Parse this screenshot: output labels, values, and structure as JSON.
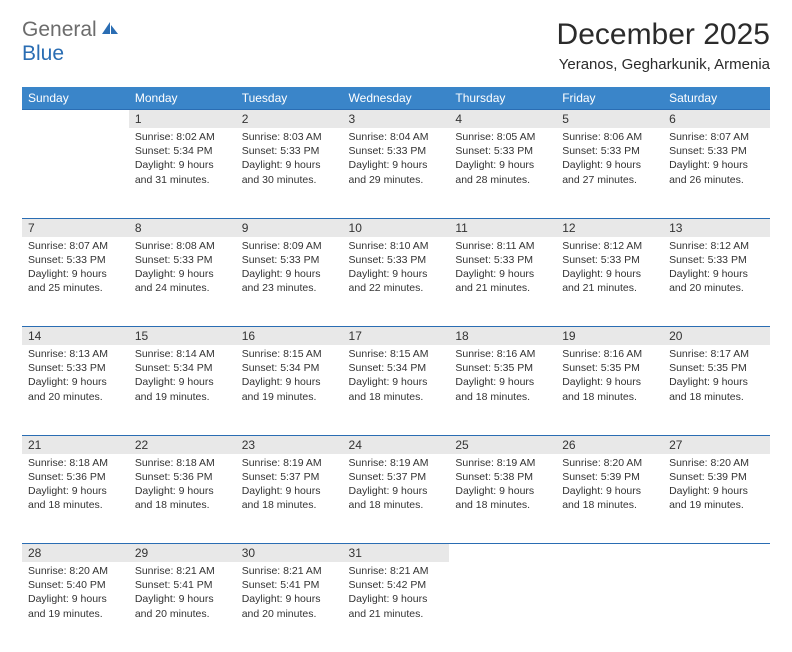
{
  "logo": {
    "word1": "General",
    "word2": "Blue"
  },
  "title": "December 2025",
  "location": "Yeranos, Gegharkunik, Armenia",
  "colors": {
    "header_bg": "#3a85c9",
    "header_text": "#ffffff",
    "daynum_bg": "#e8e8e8",
    "border": "#2a6db3",
    "logo_gray": "#6c6c6c",
    "logo_blue": "#2a6db3"
  },
  "weekdays": [
    "Sunday",
    "Monday",
    "Tuesday",
    "Wednesday",
    "Thursday",
    "Friday",
    "Saturday"
  ],
  "weeks": [
    [
      null,
      {
        "n": "1",
        "sr": "Sunrise: 8:02 AM",
        "ss": "Sunset: 5:34 PM",
        "dl": "Daylight: 9 hours and 31 minutes."
      },
      {
        "n": "2",
        "sr": "Sunrise: 8:03 AM",
        "ss": "Sunset: 5:33 PM",
        "dl": "Daylight: 9 hours and 30 minutes."
      },
      {
        "n": "3",
        "sr": "Sunrise: 8:04 AM",
        "ss": "Sunset: 5:33 PM",
        "dl": "Daylight: 9 hours and 29 minutes."
      },
      {
        "n": "4",
        "sr": "Sunrise: 8:05 AM",
        "ss": "Sunset: 5:33 PM",
        "dl": "Daylight: 9 hours and 28 minutes."
      },
      {
        "n": "5",
        "sr": "Sunrise: 8:06 AM",
        "ss": "Sunset: 5:33 PM",
        "dl": "Daylight: 9 hours and 27 minutes."
      },
      {
        "n": "6",
        "sr": "Sunrise: 8:07 AM",
        "ss": "Sunset: 5:33 PM",
        "dl": "Daylight: 9 hours and 26 minutes."
      }
    ],
    [
      {
        "n": "7",
        "sr": "Sunrise: 8:07 AM",
        "ss": "Sunset: 5:33 PM",
        "dl": "Daylight: 9 hours and 25 minutes."
      },
      {
        "n": "8",
        "sr": "Sunrise: 8:08 AM",
        "ss": "Sunset: 5:33 PM",
        "dl": "Daylight: 9 hours and 24 minutes."
      },
      {
        "n": "9",
        "sr": "Sunrise: 8:09 AM",
        "ss": "Sunset: 5:33 PM",
        "dl": "Daylight: 9 hours and 23 minutes."
      },
      {
        "n": "10",
        "sr": "Sunrise: 8:10 AM",
        "ss": "Sunset: 5:33 PM",
        "dl": "Daylight: 9 hours and 22 minutes."
      },
      {
        "n": "11",
        "sr": "Sunrise: 8:11 AM",
        "ss": "Sunset: 5:33 PM",
        "dl": "Daylight: 9 hours and 21 minutes."
      },
      {
        "n": "12",
        "sr": "Sunrise: 8:12 AM",
        "ss": "Sunset: 5:33 PM",
        "dl": "Daylight: 9 hours and 21 minutes."
      },
      {
        "n": "13",
        "sr": "Sunrise: 8:12 AM",
        "ss": "Sunset: 5:33 PM",
        "dl": "Daylight: 9 hours and 20 minutes."
      }
    ],
    [
      {
        "n": "14",
        "sr": "Sunrise: 8:13 AM",
        "ss": "Sunset: 5:33 PM",
        "dl": "Daylight: 9 hours and 20 minutes."
      },
      {
        "n": "15",
        "sr": "Sunrise: 8:14 AM",
        "ss": "Sunset: 5:34 PM",
        "dl": "Daylight: 9 hours and 19 minutes."
      },
      {
        "n": "16",
        "sr": "Sunrise: 8:15 AM",
        "ss": "Sunset: 5:34 PM",
        "dl": "Daylight: 9 hours and 19 minutes."
      },
      {
        "n": "17",
        "sr": "Sunrise: 8:15 AM",
        "ss": "Sunset: 5:34 PM",
        "dl": "Daylight: 9 hours and 18 minutes."
      },
      {
        "n": "18",
        "sr": "Sunrise: 8:16 AM",
        "ss": "Sunset: 5:35 PM",
        "dl": "Daylight: 9 hours and 18 minutes."
      },
      {
        "n": "19",
        "sr": "Sunrise: 8:16 AM",
        "ss": "Sunset: 5:35 PM",
        "dl": "Daylight: 9 hours and 18 minutes."
      },
      {
        "n": "20",
        "sr": "Sunrise: 8:17 AM",
        "ss": "Sunset: 5:35 PM",
        "dl": "Daylight: 9 hours and 18 minutes."
      }
    ],
    [
      {
        "n": "21",
        "sr": "Sunrise: 8:18 AM",
        "ss": "Sunset: 5:36 PM",
        "dl": "Daylight: 9 hours and 18 minutes."
      },
      {
        "n": "22",
        "sr": "Sunrise: 8:18 AM",
        "ss": "Sunset: 5:36 PM",
        "dl": "Daylight: 9 hours and 18 minutes."
      },
      {
        "n": "23",
        "sr": "Sunrise: 8:19 AM",
        "ss": "Sunset: 5:37 PM",
        "dl": "Daylight: 9 hours and 18 minutes."
      },
      {
        "n": "24",
        "sr": "Sunrise: 8:19 AM",
        "ss": "Sunset: 5:37 PM",
        "dl": "Daylight: 9 hours and 18 minutes."
      },
      {
        "n": "25",
        "sr": "Sunrise: 8:19 AM",
        "ss": "Sunset: 5:38 PM",
        "dl": "Daylight: 9 hours and 18 minutes."
      },
      {
        "n": "26",
        "sr": "Sunrise: 8:20 AM",
        "ss": "Sunset: 5:39 PM",
        "dl": "Daylight: 9 hours and 18 minutes."
      },
      {
        "n": "27",
        "sr": "Sunrise: 8:20 AM",
        "ss": "Sunset: 5:39 PM",
        "dl": "Daylight: 9 hours and 19 minutes."
      }
    ],
    [
      {
        "n": "28",
        "sr": "Sunrise: 8:20 AM",
        "ss": "Sunset: 5:40 PM",
        "dl": "Daylight: 9 hours and 19 minutes."
      },
      {
        "n": "29",
        "sr": "Sunrise: 8:21 AM",
        "ss": "Sunset: 5:41 PM",
        "dl": "Daylight: 9 hours and 20 minutes."
      },
      {
        "n": "30",
        "sr": "Sunrise: 8:21 AM",
        "ss": "Sunset: 5:41 PM",
        "dl": "Daylight: 9 hours and 20 minutes."
      },
      {
        "n": "31",
        "sr": "Sunrise: 8:21 AM",
        "ss": "Sunset: 5:42 PM",
        "dl": "Daylight: 9 hours and 21 minutes."
      },
      null,
      null,
      null
    ]
  ]
}
